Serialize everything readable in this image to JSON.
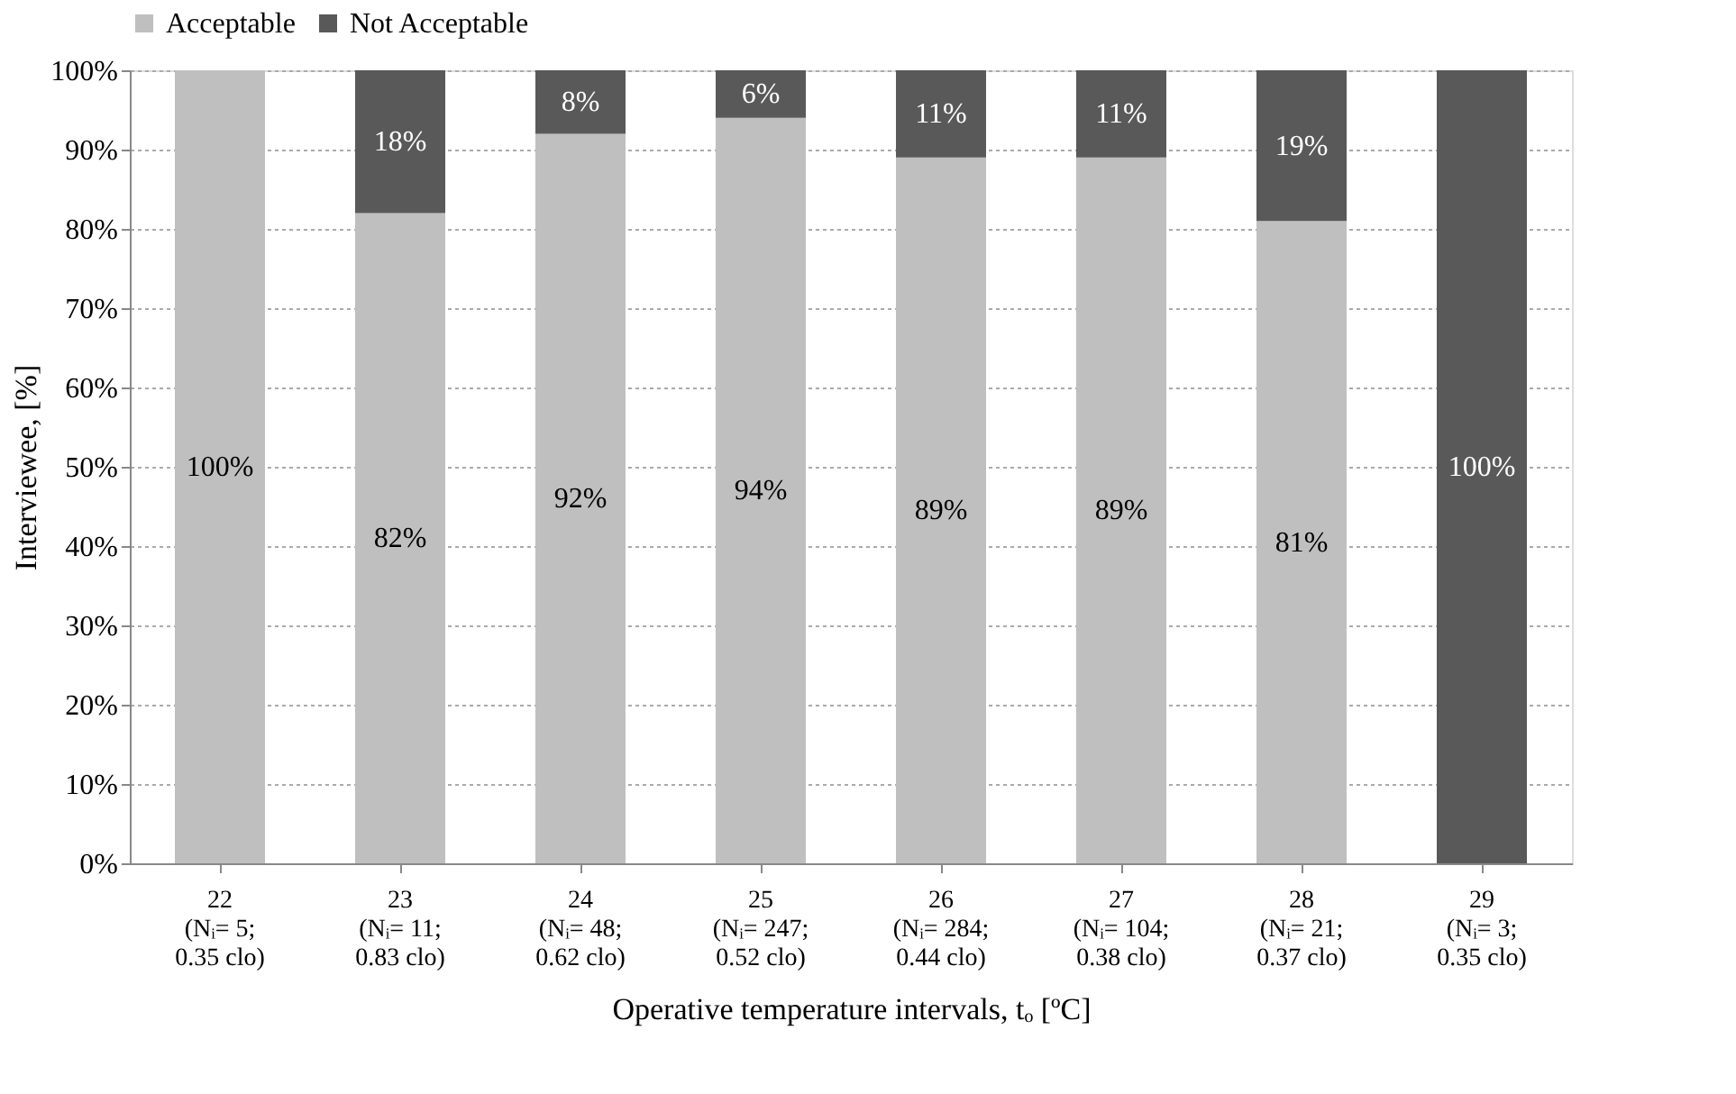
{
  "chart_data": {
    "type": "bar",
    "stacked": true,
    "xlabel": "Operative temperature intervals, tₒ [ºC]",
    "ylabel": "Interviewee, [%]",
    "categories": [
      "22\n(Nᵢ= 5;\n0.35 clo)",
      "23\n(Nᵢ= 11;\n0.83 clo)",
      "24\n(Nᵢ= 48;\n0.62 clo)",
      "25\n(Nᵢ= 247;\n0.52 clo)",
      "26\n(Nᵢ= 284;\n0.44 clo)",
      "27\n(Nᵢ= 104;\n0.38 clo)",
      "28\n(Nᵢ= 21;\n0.37 clo)",
      "29\n(Nᵢ= 3;\n0.35 clo)"
    ],
    "series": [
      {
        "name": "Acceptable",
        "color": "#bfbfbf",
        "values": [
          100,
          82,
          92,
          94,
          89,
          89,
          81,
          0
        ],
        "value_labels": [
          "100%",
          "82%",
          "92%",
          "94%",
          "89%",
          "89%",
          "81%",
          null
        ]
      },
      {
        "name": "Not Acceptable",
        "color": "#595959",
        "values": [
          0,
          18,
          8,
          6,
          11,
          11,
          19,
          100
        ],
        "value_labels": [
          null,
          "18%",
          "8%",
          "6%",
          "11%",
          "11%",
          "19%",
          "100%"
        ]
      }
    ],
    "ylim": [
      0,
      100
    ],
    "yticks": [
      {
        "value": 0,
        "label": "0%"
      },
      {
        "value": 10,
        "label": "10%"
      },
      {
        "value": 20,
        "label": "20%"
      },
      {
        "value": 30,
        "label": "30%"
      },
      {
        "value": 40,
        "label": "40%"
      },
      {
        "value": 50,
        "label": "50%"
      },
      {
        "value": 60,
        "label": "60%"
      },
      {
        "value": 70,
        "label": "70%"
      },
      {
        "value": 80,
        "label": "80%"
      },
      {
        "value": 90,
        "label": "90%"
      },
      {
        "value": 100,
        "label": "100%"
      }
    ],
    "grid": "y",
    "legend": "top"
  }
}
